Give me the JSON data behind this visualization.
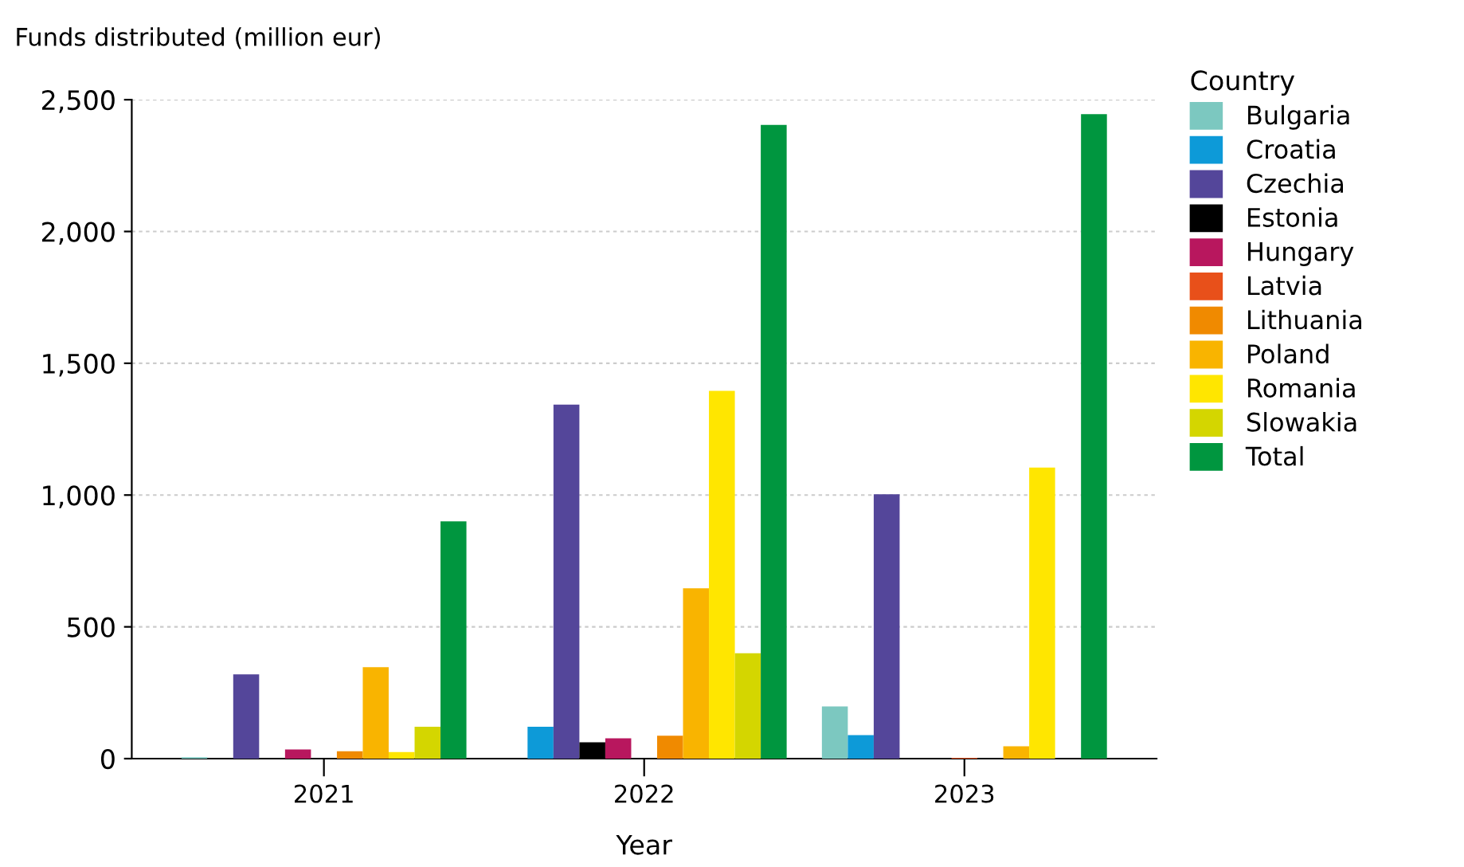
{
  "chart_data": {
    "type": "bar",
    "ylabel": "Funds distributed (million eur)",
    "xlabel": "Year",
    "legend_title": "Country",
    "categories": [
      "2021",
      "2022",
      "2023"
    ],
    "series": [
      {
        "name": "Bulgaria",
        "color": "#7cc8c0",
        "values": [
          5,
          0,
          198
        ]
      },
      {
        "name": "Croatia",
        "color": "#0d9ad8",
        "values": [
          0,
          121,
          89
        ]
      },
      {
        "name": "Czechia",
        "color": "#54469a",
        "values": [
          320,
          1343,
          1003
        ]
      },
      {
        "name": "Estonia",
        "color": "#000000",
        "values": [
          0,
          62,
          0
        ]
      },
      {
        "name": "Hungary",
        "color": "#b8175e",
        "values": [
          35,
          77,
          0
        ]
      },
      {
        "name": "Latvia",
        "color": "#e8501a",
        "values": [
          0,
          0,
          3
        ]
      },
      {
        "name": "Lithuania",
        "color": "#f08a00",
        "values": [
          28,
          87,
          0
        ]
      },
      {
        "name": "Poland",
        "color": "#f9b400",
        "values": [
          347,
          646,
          47
        ]
      },
      {
        "name": "Romania",
        "color": "#ffe600",
        "values": [
          25,
          1395,
          1104
        ]
      },
      {
        "name": "Slowakia",
        "color": "#d4d600",
        "values": [
          121,
          400,
          0
        ]
      },
      {
        "name": "Total",
        "color": "#00963f",
        "values": [
          900,
          2404,
          2445
        ]
      }
    ],
    "ylim": [
      0,
      2500
    ],
    "yticks": [
      0,
      500,
      {
        "value": 1000,
        "label": "1,000"
      },
      {
        "value": 1500,
        "label": "1,500"
      },
      {
        "value": 2000,
        "label": "2,000"
      },
      {
        "value": 2500,
        "label": "2,500"
      }
    ],
    "grid": "y",
    "legend": "right"
  }
}
